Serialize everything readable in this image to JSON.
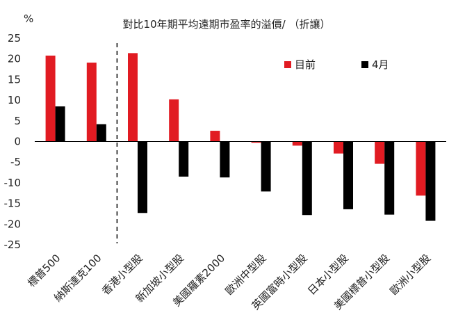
{
  "chart_data": {
    "type": "bar",
    "title": "對比10年期平均遠期市盈率的溢價/ （折讓）",
    "unit_label": "%",
    "categories": [
      "標普500",
      "納斯達克100",
      "香港小型股",
      "新加坡小型股",
      "美國羅素2000",
      "歐洲中型股",
      "英國富時小型股",
      "日本小型股",
      "美國標普小型股",
      "歐洲小型股"
    ],
    "series": [
      {
        "name": "目前",
        "color": "#e11b22",
        "values": [
          20.8,
          19.1,
          21.4,
          10.2,
          2.6,
          -0.3,
          -1.0,
          -2.9,
          -5.4,
          -13.1
        ]
      },
      {
        "name": "4月",
        "color": "#000000",
        "values": [
          8.5,
          4.2,
          -17.3,
          -8.5,
          -8.7,
          -12.1,
          -17.8,
          -16.4,
          -17.7,
          -19.2
        ]
      }
    ],
    "ylim": [
      -25,
      25
    ],
    "yticks": [
      "25",
      "20",
      "15",
      "10",
      "5",
      "0",
      "-5",
      "-10",
      "-15",
      "-20",
      "-25"
    ],
    "divider_after_index": 1,
    "legend_position": "top-right",
    "grid": false
  }
}
